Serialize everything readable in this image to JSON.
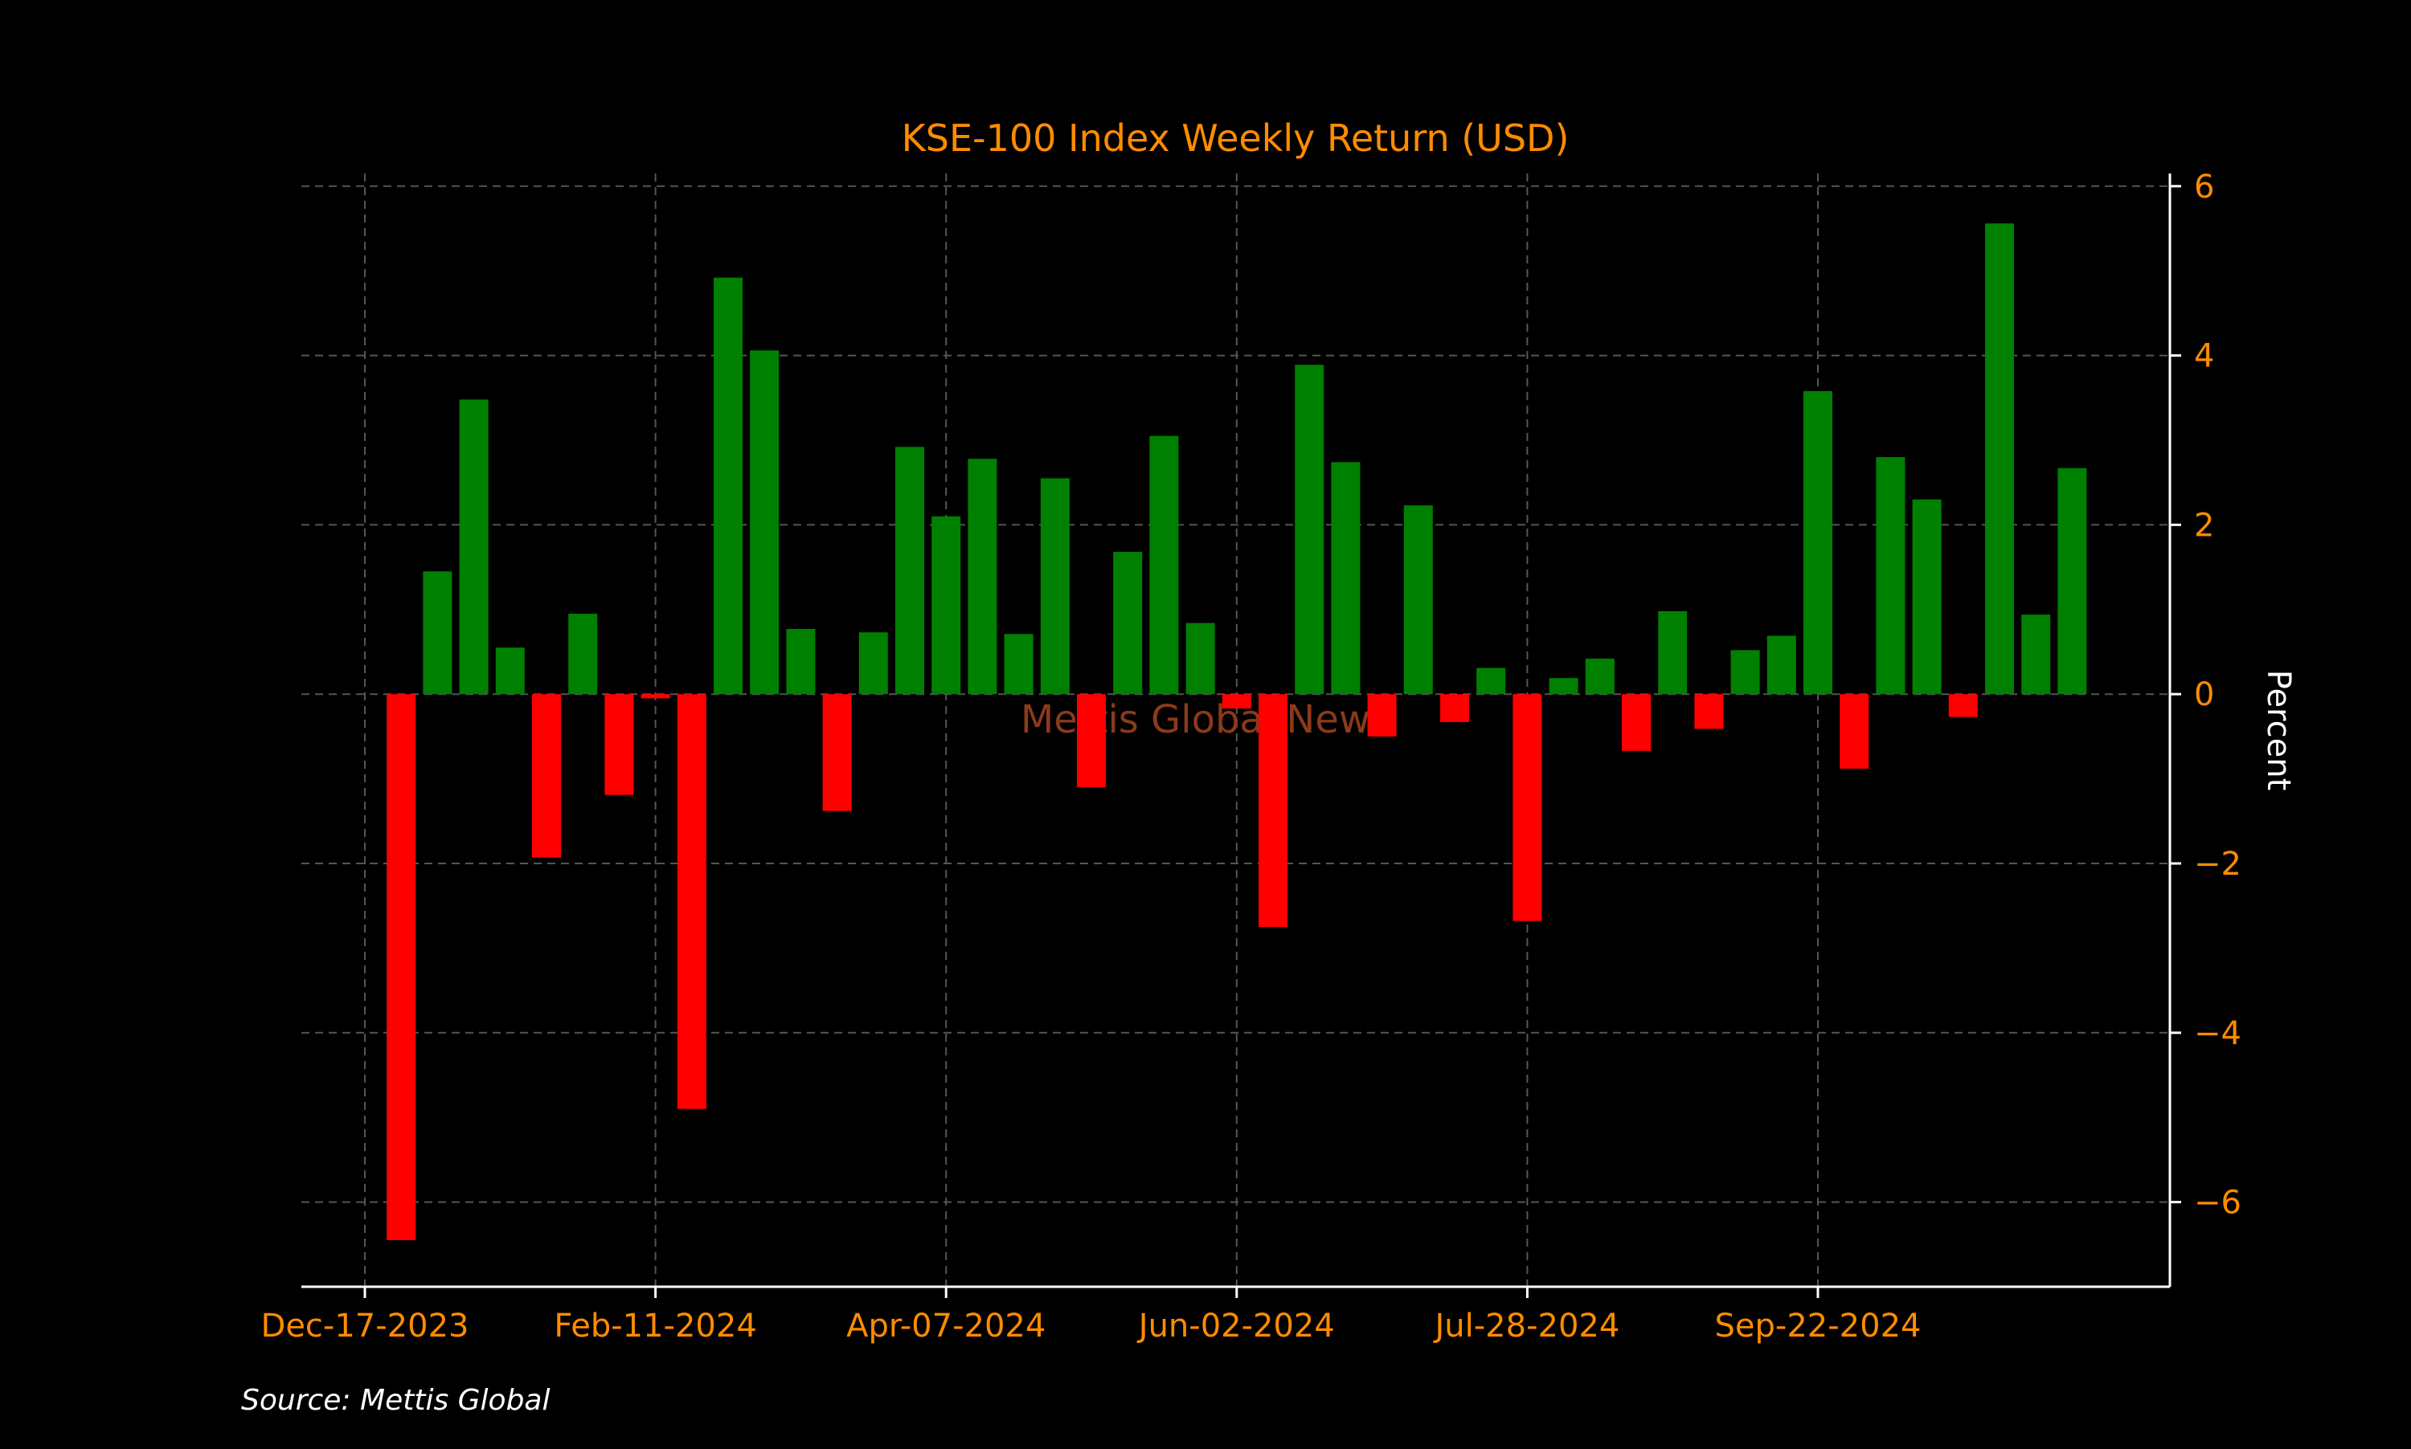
{
  "chart_data": {
    "type": "bar",
    "title": "KSE-100 Index Weekly Return (USD)",
    "xlabel": "",
    "ylabel": "Percent",
    "source": "Source: Mettis Global",
    "watermark": "Mettis Global News",
    "x_ticks": [
      "Dec-17-2023",
      "Feb-11-2024",
      "Apr-07-2024",
      "Jun-02-2024",
      "Jul-28-2024",
      "Sep-22-2024"
    ],
    "y_ticks": [
      6,
      4,
      2,
      0,
      -2,
      -4,
      -6
    ],
    "y_tick_labels": [
      "6",
      "4",
      "2",
      "0",
      "−2",
      "−4",
      "−6"
    ],
    "ylim": [
      -7,
      6.15
    ],
    "grid": true,
    "y_axis_position": "right",
    "dates": [
      "2023-12-24",
      "2023-12-31",
      "2024-01-07",
      "2024-01-14",
      "2024-01-21",
      "2024-01-28",
      "2024-02-04",
      "2024-02-11",
      "2024-02-18",
      "2024-02-25",
      "2024-03-03",
      "2024-03-10",
      "2024-03-17",
      "2024-03-24",
      "2024-03-31",
      "2024-04-07",
      "2024-04-14",
      "2024-04-21",
      "2024-04-28",
      "2024-05-05",
      "2024-05-12",
      "2024-05-19",
      "2024-05-26",
      "2024-06-02",
      "2024-06-09",
      "2024-06-16",
      "2024-06-23",
      "2024-06-30",
      "2024-07-07",
      "2024-07-14",
      "2024-07-21",
      "2024-07-28",
      "2024-08-04",
      "2024-08-11",
      "2024-08-18",
      "2024-08-25",
      "2024-09-01",
      "2024-09-08",
      "2024-09-15",
      "2024-09-22",
      "2024-09-29",
      "2024-10-06",
      "2024-10-13",
      "2024-10-20",
      "2024-10-27",
      "2024-11-03",
      "2024-11-10"
    ],
    "values": [
      -6.45,
      1.45,
      3.48,
      0.55,
      -1.93,
      0.95,
      -1.19,
      -0.05,
      -4.9,
      4.92,
      4.06,
      0.77,
      -1.38,
      0.73,
      2.92,
      2.1,
      2.78,
      0.71,
      2.55,
      -1.1,
      1.68,
      3.05,
      0.84,
      -0.17,
      -2.75,
      3.89,
      2.74,
      -0.5,
      2.23,
      -0.33,
      0.31,
      -2.68,
      0.19,
      0.42,
      -0.67,
      0.98,
      -0.41,
      0.52,
      0.69,
      3.58,
      -0.88,
      2.8,
      2.3,
      -0.27,
      5.56,
      0.94,
      2.67
    ],
    "colors": {
      "positive": "#008000",
      "negative": "#ff0000",
      "text": "#ff8c00",
      "axis": "#ffffff",
      "grid": "#555555",
      "watermark": "#8b3a1a"
    }
  }
}
